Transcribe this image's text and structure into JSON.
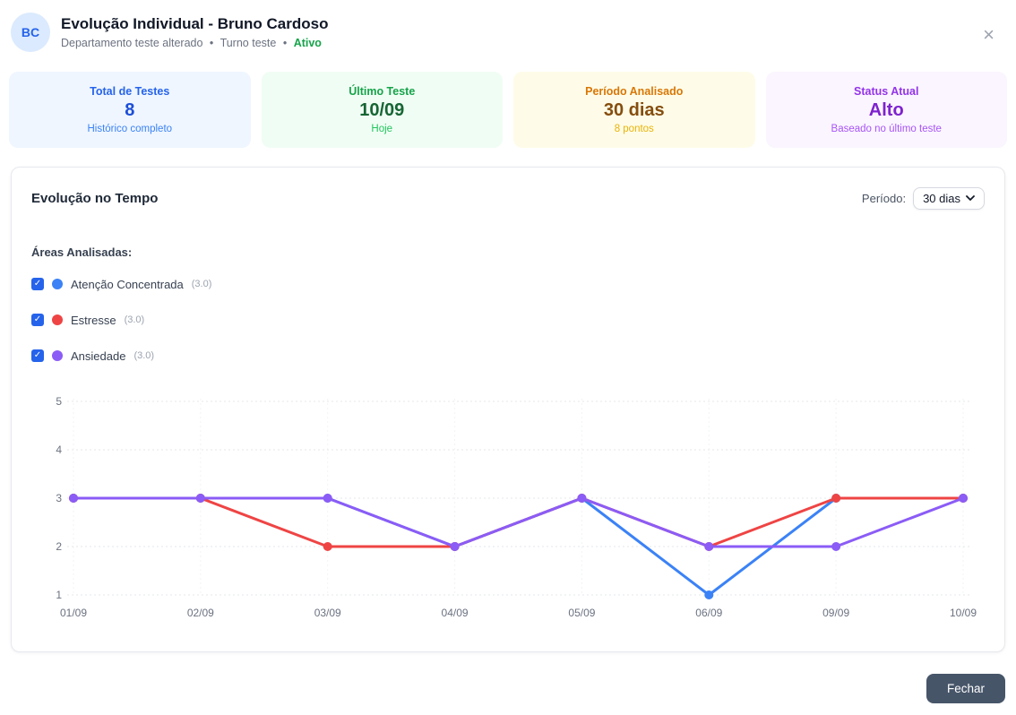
{
  "header": {
    "avatar_initials": "BC",
    "title": "Evolução Individual - Bruno Cardoso",
    "department": "Departamento teste alterado",
    "shift": "Turno teste",
    "status": "Ativo",
    "separator": "•",
    "close_icon": "×"
  },
  "stats": [
    {
      "label": "Total de Testes",
      "value": "8",
      "sub": "Histórico completo",
      "bg": "#eff6ff",
      "label_color": "#2563eb",
      "value_color": "#1d4ed8",
      "sub_color": "#3b82f6"
    },
    {
      "label": "Último Teste",
      "value": "10/09",
      "sub": "Hoje",
      "bg": "#f0fdf4",
      "label_color": "#16a34a",
      "value_color": "#166534",
      "sub_color": "#22c55e"
    },
    {
      "label": "Período Analisado",
      "value": "30 dias",
      "sub": "8 pontos",
      "bg": "#fefce8",
      "label_color": "#d97706",
      "value_color": "#854d0e",
      "sub_color": "#eab308"
    },
    {
      "label": "Status Atual",
      "value": "Alto",
      "sub": "Baseado no último teste",
      "bg": "#faf5ff",
      "label_color": "#9333ea",
      "value_color": "#7e22ce",
      "sub_color": "#a855f7"
    }
  ],
  "chart_card": {
    "title": "Evolução no Tempo",
    "period_label": "Período:",
    "period_value": "30 dias",
    "areas_label": "Áreas Analisadas:",
    "legend": [
      {
        "label": "Atenção Concentrada",
        "value": "(3.0)",
        "color": "#3b82f6",
        "checked": true
      },
      {
        "label": "Estresse",
        "value": "(3.0)",
        "color": "#ef4444",
        "checked": true
      },
      {
        "label": "Ansiedade",
        "value": "(3.0)",
        "color": "#8b5cf6",
        "checked": true
      }
    ]
  },
  "chart_data": {
    "type": "line",
    "x": [
      "01/09",
      "02/09",
      "03/09",
      "04/09",
      "05/09",
      "06/09",
      "09/09",
      "10/09"
    ],
    "series": [
      {
        "name": "Atenção Concentrada",
        "color": "#3b82f6",
        "values": [
          3,
          3,
          3,
          2,
          3,
          1,
          3,
          3
        ]
      },
      {
        "name": "Estresse",
        "color": "#ef4444",
        "values": [
          3,
          3,
          2,
          2,
          3,
          2,
          3,
          3
        ]
      },
      {
        "name": "Ansiedade",
        "color": "#8b5cf6",
        "values": [
          3,
          3,
          3,
          2,
          3,
          2,
          2,
          3
        ]
      }
    ],
    "ylim": [
      1,
      5
    ],
    "yticks": [
      1,
      2,
      3,
      4,
      5
    ],
    "grid": true,
    "grid_style": "dotted",
    "legend_position": "above-as-checkboxes"
  },
  "footer": {
    "close_button": "Fechar"
  }
}
